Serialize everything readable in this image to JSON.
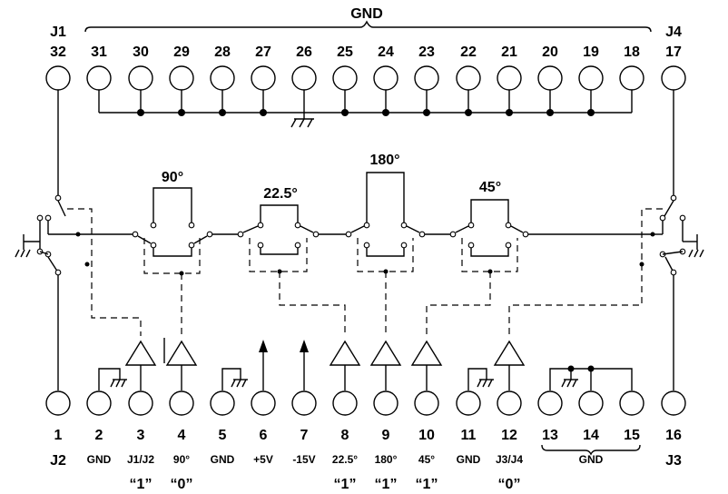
{
  "header": {
    "gnd_label": "GND",
    "left_connector": "J1",
    "right_connector": "J4"
  },
  "top_pins": [
    "32",
    "31",
    "30",
    "29",
    "28",
    "27",
    "26",
    "25",
    "24",
    "23",
    "22",
    "21",
    "20",
    "19",
    "18",
    "17"
  ],
  "bottom_pins": [
    "1",
    "2",
    "3",
    "4",
    "5",
    "6",
    "7",
    "8",
    "9",
    "10",
    "11",
    "12",
    "13",
    "14",
    "15",
    "16"
  ],
  "bottom_labels": [
    "J2",
    "GND",
    "J1/J2",
    "90°",
    "GND",
    "+5V",
    "-15V",
    "22.5°",
    "180°",
    "45°",
    "GND",
    "J3/J4",
    "GND",
    "J3"
  ],
  "logic_states": [
    "“1”",
    "“0”",
    "“1”",
    "“1”",
    "“1”",
    "“0”"
  ],
  "delay_sections": [
    "90°",
    "22.5°",
    "180°",
    "45°"
  ]
}
